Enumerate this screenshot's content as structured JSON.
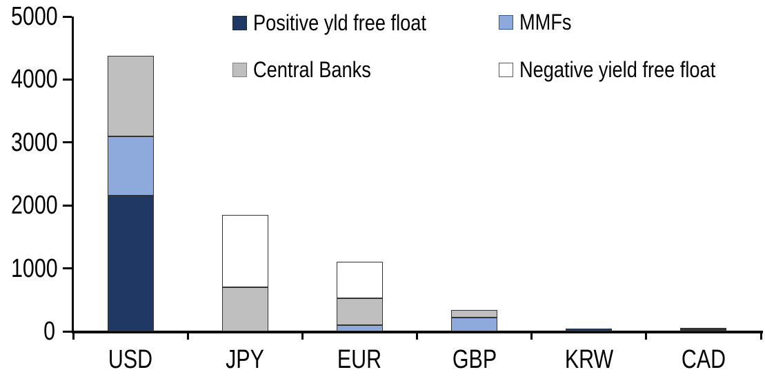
{
  "chart_data": {
    "type": "bar",
    "stacked": true,
    "title": "",
    "xlabel": "",
    "ylabel": "",
    "categories": [
      "USD",
      "JPY",
      "EUR",
      "GBP",
      "KRW",
      "CAD"
    ],
    "series": [
      {
        "name": "Positive yld free float",
        "color": "#1F3864",
        "swatch_border": "#152741",
        "values": [
          2150,
          0,
          0,
          0,
          45,
          30
        ]
      },
      {
        "name": "MMFs",
        "color": "#8EA9DB",
        "swatch_border": "#2E5597",
        "values": [
          950,
          0,
          100,
          220,
          0,
          0
        ]
      },
      {
        "name": "Central Banks",
        "color": "#BFBFBF",
        "swatch_border": "#7F7F7F",
        "values": [
          1280,
          700,
          430,
          115,
          0,
          0
        ]
      },
      {
        "name": "Negative yield free float",
        "color": "#FFFFFF",
        "swatch_border": "#595959",
        "values": [
          0,
          1150,
          580,
          0,
          0,
          30
        ]
      }
    ],
    "totals_by_category": [
      4380,
      1850,
      1110,
      335,
      45,
      60
    ],
    "ylim": [
      0,
      5000
    ],
    "ytick_interval": 1000,
    "yticks": [
      "0",
      "1000",
      "2000",
      "3000",
      "4000",
      "5000"
    ],
    "grid": false,
    "legend_position": "top",
    "axis_color": "#000000",
    "background_color": "#FFFFFF",
    "bar_border_color": "#333333"
  }
}
